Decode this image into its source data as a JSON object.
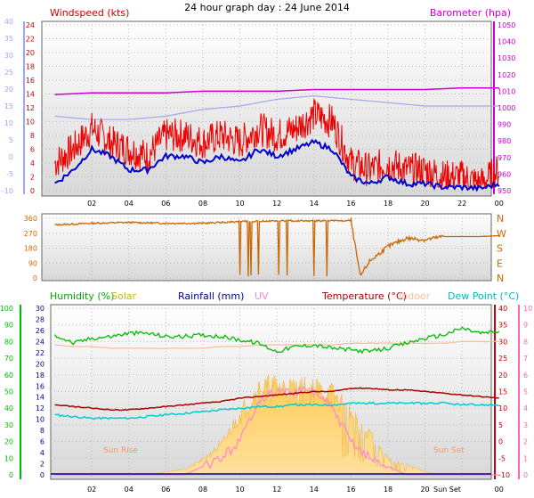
{
  "title": "24 hour graph day : 24 June 2014",
  "x_labels": [
    "02",
    "04",
    "06",
    "08",
    "10",
    "12",
    "14",
    "16",
    "18",
    "20",
    "22",
    "00"
  ],
  "panel1": {
    "wind_label": "Windspeed (kts)",
    "baro_label": "Barometer (hpa)",
    "left_outer_ticks": [
      "40",
      "35",
      "30",
      "25",
      "20",
      "15",
      "10",
      "5",
      "0",
      "-5",
      "-10"
    ],
    "left_inner_ticks": [
      "24",
      "22",
      "20",
      "18",
      "16",
      "14",
      "12",
      "10",
      "8",
      "6",
      "4",
      "2",
      "0"
    ],
    "right_ticks": [
      "1050",
      "1040",
      "1030",
      "1020",
      "1010",
      "1000",
      "990",
      "980",
      "970",
      "960",
      "950"
    ]
  },
  "panel2": {
    "left_ticks": [
      "360",
      "270",
      "180",
      "90",
      "0"
    ],
    "dir_labels": [
      "N",
      "W",
      "S",
      "E",
      "N"
    ]
  },
  "panel3": {
    "legend": {
      "humidity": "Humidity (%)",
      "solar": "Solar",
      "rainfall": "Rainfall (mm)",
      "uv": "UV",
      "temperature": "Temperature (°C)",
      "indoor": "Indoor",
      "dewpoint": "Dew Point (°C)"
    },
    "left_outer_ticks": [
      "100",
      "90",
      "80",
      "70",
      "60",
      "50",
      "40",
      "30",
      "20",
      "10",
      "0"
    ],
    "left_inner_ticks": [
      "30",
      "28",
      "26",
      "24",
      "22",
      "20",
      "18",
      "16",
      "14",
      "12",
      "10",
      "8",
      "6",
      "4",
      "2",
      "0"
    ],
    "right_inner_ticks": [
      "40",
      "35",
      "30",
      "25",
      "20",
      "15",
      "10",
      "5",
      "0",
      "-5",
      "-10"
    ],
    "right_outer_ticks": [
      "10",
      "9",
      "8",
      "7",
      "6",
      "5",
      "4",
      "3",
      "2",
      "1",
      "0"
    ],
    "sunrise": "Sun Rise",
    "sunset": "Sun Set",
    "sunset_tick": "Sun Set"
  },
  "colors": {
    "wind_avg": "#0000cc",
    "wind_gust": "#ee0000",
    "wind_label": "#cc0000",
    "barometer": "#cc00cc",
    "temp_axis_light": "#a0a8e8",
    "direction": "#cc6600",
    "humidity": "#00bb00",
    "solar": "#ffcc44",
    "solar_label": "#bbbb00",
    "rainfall": "#000099",
    "uv": "#ff88cc",
    "temperature": "#aa0000",
    "indoor": "#ffbb99",
    "dewpoint": "#00cccc",
    "sunrise_text": "#ee9966"
  },
  "chart_data": [
    {
      "type": "line",
      "ylabel": "Windspeed (kts)",
      "ylim": [
        0,
        24
      ],
      "x_hours": [
        0,
        1,
        2,
        3,
        4,
        5,
        6,
        7,
        8,
        9,
        10,
        11,
        12,
        13,
        14,
        15,
        16,
        17,
        18,
        19,
        20,
        21,
        22,
        23,
        24
      ],
      "series": [
        {
          "name": "Windspeed (kts)",
          "values": [
            4,
            6,
            9,
            7,
            6,
            5,
            8,
            8,
            7,
            8,
            7,
            9,
            8,
            9,
            11,
            10,
            4,
            3,
            4,
            3,
            3,
            2,
            2,
            1,
            3
          ]
        },
        {
          "values": [
            1,
            3,
            6,
            5,
            3,
            3,
            5,
            5,
            4,
            5,
            4,
            6,
            5,
            6,
            7,
            6,
            2,
            1,
            2,
            1,
            1,
            0.5,
            0.5,
            0.3,
            1
          ]
        }
      ]
    },
    {
      "type": "line",
      "ylabel": "Barometer (hpa)",
      "ylim": [
        950,
        1050
      ],
      "x_hours": [
        0,
        2,
        4,
        6,
        8,
        10,
        12,
        14,
        16,
        18,
        20,
        22,
        24
      ],
      "series": [
        {
          "name": "Barometer (hpa)",
          "values": [
            1008,
            1009,
            1009,
            1009,
            1010,
            1010,
            1010,
            1011,
            1011,
            1011,
            1011,
            1012,
            1012
          ]
        }
      ]
    },
    {
      "type": "line",
      "ylim": [
        -10,
        40
      ],
      "x_hours": [
        0,
        2,
        4,
        6,
        8,
        10,
        12,
        14,
        16,
        18,
        20,
        22,
        24
      ],
      "series": [
        {
          "values": [
            12,
            11,
            11,
            12,
            14,
            15,
            17,
            18,
            17,
            16,
            15,
            15,
            15
          ]
        }
      ]
    },
    {
      "type": "line",
      "ylim": [
        0,
        360
      ],
      "x_hours": [
        0,
        2,
        4,
        6,
        8,
        10,
        12,
        14,
        16,
        16.5,
        17,
        18,
        19,
        20,
        21,
        22,
        23,
        24
      ],
      "series": [
        {
          "values": [
            320,
            330,
            335,
            330,
            330,
            340,
            345,
            345,
            345,
            10,
            100,
            190,
            240,
            230,
            250,
            250,
            250,
            255
          ]
        }
      ]
    },
    {
      "type": "line",
      "x_hours": [
        0,
        1,
        2,
        3,
        4,
        5,
        6,
        7,
        8,
        9,
        10,
        11,
        12,
        13,
        14,
        15,
        16,
        17,
        18,
        19,
        20,
        21,
        22,
        23,
        24
      ],
      "series": [
        {
          "name": "Humidity (%)",
          "ylim": [
            0,
            100
          ],
          "values": [
            84,
            79,
            82,
            83,
            85,
            85,
            83,
            83,
            84,
            83,
            81,
            79,
            74,
            77,
            78,
            76,
            75,
            74,
            76,
            79,
            82,
            84,
            88,
            85,
            86
          ]
        },
        {
          "name": "Temperature (°C)",
          "ylim": [
            -10,
            40
          ],
          "values": [
            11,
            10.5,
            10,
            9.5,
            9.5,
            10,
            10.5,
            11,
            11.5,
            12,
            13,
            13.5,
            14,
            14.5,
            15,
            15,
            16,
            16,
            15.5,
            15.5,
            15,
            14.5,
            14,
            13.5,
            13
          ]
        },
        {
          "name": "Dew Point (°C)",
          "ylim": [
            -10,
            40
          ],
          "values": [
            8,
            7.5,
            7,
            7,
            7,
            7.5,
            8,
            8.5,
            9,
            9.5,
            10,
            10.5,
            10.5,
            11,
            11,
            11,
            11.5,
            11.5,
            11.5,
            11.5,
            11.5,
            11.5,
            11,
            11,
            11
          ]
        },
        {
          "name": "Indoor",
          "ylim": [
            -10,
            40
          ],
          "values": [
            29,
            28.5,
            28.5,
            28,
            28,
            28,
            28,
            28,
            28,
            28.5,
            28.5,
            29,
            29,
            29,
            29,
            29,
            29.5,
            29.5,
            29.5,
            29.5,
            29.5,
            29.5,
            30,
            30,
            30
          ]
        },
        {
          "name": "Solar",
          "ylim": [
            0,
            30
          ],
          "values": [
            0,
            0,
            0,
            0,
            0,
            0,
            0.5,
            1,
            3,
            6,
            12,
            17,
            17.5,
            17,
            17,
            16,
            12,
            8,
            3,
            2,
            0.5,
            0,
            0,
            0,
            0
          ]
        },
        {
          "name": "UV",
          "ylim": [
            0,
            10
          ],
          "values": [
            0,
            0,
            0,
            0,
            0,
            0,
            0,
            0,
            0.5,
            1,
            2,
            4.5,
            5,
            5,
            5,
            4,
            2,
            1,
            0.5,
            0,
            0,
            0,
            0,
            0,
            0
          ]
        },
        {
          "name": "Rainfall (mm)",
          "ylim": [
            0,
            30
          ],
          "values": [
            0,
            0,
            0,
            0,
            0,
            0,
            0,
            0,
            0,
            0,
            0,
            0,
            0,
            0,
            0,
            0,
            0,
            0,
            0,
            0,
            0,
            0,
            0,
            0,
            0
          ]
        }
      ]
    }
  ]
}
